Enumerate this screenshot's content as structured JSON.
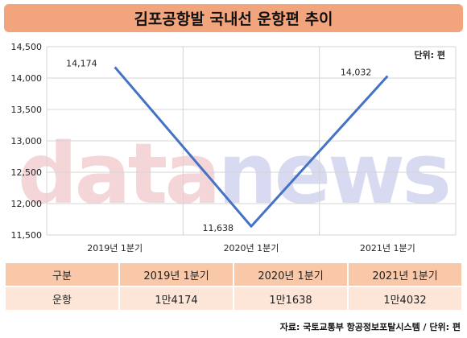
{
  "title": "김포공항발 국내선 운항편 추이",
  "unit_label": "단위: 편",
  "watermark": {
    "part1": "data",
    "part2": "news",
    "color1": "#e8a6ad",
    "color2": "#a8aee2"
  },
  "line_color": "#4472c4",
  "chart_data": {
    "type": "line",
    "title": "김포공항발 국내선 운항편 추이",
    "categories": [
      "2019년 1분기",
      "2020년 1분기",
      "2021년 1분기"
    ],
    "series": [
      {
        "values": [
          14174,
          11638,
          14032
        ]
      }
    ],
    "data_labels": [
      "14,174",
      "11,638",
      "14,032"
    ],
    "ylim": [
      11500,
      14500
    ],
    "yticks": [
      11500,
      12000,
      12500,
      13000,
      13500,
      14000,
      14500
    ],
    "ytick_labels": [
      "11,500",
      "12,000",
      "12,500",
      "13,000",
      "13,500",
      "14,000",
      "14,500"
    ],
    "grid": true,
    "legend": "none"
  },
  "table": {
    "header": [
      "구분",
      "2019년 1분기",
      "2020년 1분기",
      "2021년 1분기"
    ],
    "row": [
      "운항",
      "1만4174",
      "1만1638",
      "1만4032"
    ]
  },
  "source": "자료: 국토교통부 항공정보포탈시스템 / 단위: 편"
}
